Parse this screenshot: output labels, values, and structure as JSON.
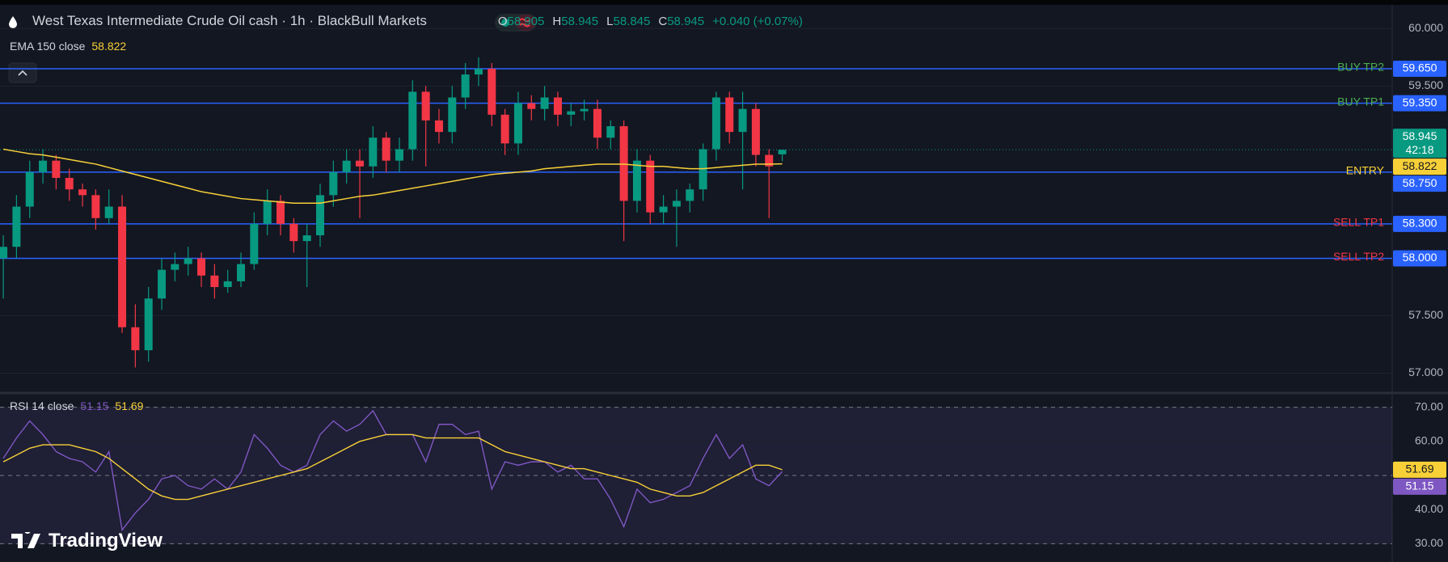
{
  "header": {
    "title": "West Texas Intermediate Crude Oil cash · 1h · BlackBull Markets",
    "ohlc_labels": [
      "O",
      "H",
      "L",
      "C"
    ],
    "change": "+0.040 (+0.07%)"
  },
  "branding": "TradingView",
  "chart_data": [
    {
      "type": "candlestick",
      "up_color": "#089981",
      "down_color": "#f23645",
      "grid": true,
      "xlim": [
        -0.25,
        105.2
      ],
      "ylim": [
        56.87,
        60.185
      ],
      "yticks": [
        {
          "value": 57,
          "label": "57.000"
        },
        {
          "value": 57.5,
          "label": "57.500"
        },
        {
          "value": 59.5,
          "label": "59.500"
        },
        {
          "value": 60,
          "label": "60.000"
        }
      ],
      "open": [
        58.0,
        58.1,
        58.45,
        58.75,
        58.85,
        58.7,
        58.6,
        58.55,
        58.35,
        58.45,
        57.4,
        57.2,
        57.65,
        57.9,
        57.95,
        58.0,
        57.85,
        57.75,
        57.8,
        57.95,
        58.3,
        58.5,
        58.3,
        58.15,
        58.2,
        58.55,
        58.75,
        58.85,
        58.8,
        59.05,
        58.85,
        58.95,
        59.45,
        59.2,
        59.1,
        59.4,
        59.6,
        59.65,
        59.25,
        59.0,
        59.35,
        59.3,
        59.4,
        59.25,
        59.28,
        59.3,
        59.05,
        59.15,
        58.5,
        58.85,
        58.4,
        58.45,
        58.5,
        58.6,
        58.95,
        59.4,
        59.1,
        59.3,
        58.9,
        58.905
      ],
      "high": [
        58.2,
        58.55,
        58.85,
        58.95,
        58.9,
        58.78,
        58.65,
        58.6,
        58.6,
        58.55,
        57.6,
        57.75,
        58.0,
        58.05,
        58.1,
        58.05,
        57.95,
        57.9,
        58.05,
        58.4,
        58.6,
        58.55,
        58.35,
        58.3,
        58.65,
        58.85,
        58.95,
        58.95,
        59.15,
        59.1,
        59.05,
        59.55,
        59.5,
        59.3,
        59.5,
        59.7,
        59.75,
        59.7,
        59.3,
        59.45,
        59.42,
        59.5,
        59.45,
        59.35,
        59.38,
        59.38,
        59.2,
        59.2,
        58.95,
        58.9,
        58.55,
        58.6,
        58.65,
        59.0,
        59.45,
        59.45,
        59.45,
        59.35,
        58.95,
        58.945
      ],
      "low": [
        57.65,
        58.0,
        58.35,
        58.65,
        58.6,
        58.5,
        58.45,
        58.25,
        58.3,
        57.35,
        57.05,
        57.1,
        57.55,
        57.8,
        57.85,
        57.75,
        57.65,
        57.7,
        57.75,
        57.9,
        58.2,
        58.2,
        58.05,
        57.75,
        58.1,
        58.45,
        58.65,
        58.35,
        58.7,
        58.75,
        58.75,
        58.85,
        58.8,
        59.0,
        59.0,
        59.3,
        59.5,
        59.15,
        58.9,
        58.9,
        59.2,
        59.2,
        59.15,
        59.15,
        59.2,
        58.95,
        58.95,
        58.15,
        58.4,
        58.3,
        58.3,
        58.1,
        58.4,
        58.5,
        58.85,
        59.0,
        58.6,
        58.8,
        58.35,
        58.845
      ],
      "close": [
        58.1,
        58.45,
        58.75,
        58.85,
        58.7,
        58.6,
        58.55,
        58.35,
        58.45,
        57.4,
        57.2,
        57.65,
        57.9,
        57.95,
        58.0,
        57.85,
        57.75,
        57.8,
        57.95,
        58.3,
        58.5,
        58.3,
        58.15,
        58.2,
        58.55,
        58.75,
        58.85,
        58.8,
        59.05,
        58.85,
        58.95,
        59.45,
        59.2,
        59.1,
        59.4,
        59.6,
        59.65,
        59.25,
        59.0,
        59.35,
        59.3,
        59.4,
        59.25,
        59.28,
        59.3,
        59.05,
        59.15,
        58.5,
        58.85,
        58.4,
        58.45,
        58.5,
        58.6,
        58.95,
        59.4,
        59.1,
        59.3,
        58.9,
        58.8,
        58.945
      ],
      "ema": {
        "name": "EMA 150 close",
        "color": "#f7d038",
        "values": [
          58.95,
          58.93,
          58.91,
          58.9,
          58.88,
          58.86,
          58.84,
          58.82,
          58.79,
          58.76,
          58.73,
          58.7,
          58.67,
          58.64,
          58.61,
          58.58,
          58.56,
          58.54,
          58.52,
          58.51,
          58.5,
          58.49,
          58.48,
          58.48,
          58.48,
          58.5,
          58.52,
          58.54,
          58.55,
          58.57,
          58.59,
          58.61,
          58.63,
          58.65,
          58.67,
          58.69,
          58.71,
          58.73,
          58.74,
          58.75,
          58.76,
          58.78,
          58.79,
          58.8,
          58.81,
          58.82,
          58.82,
          58.82,
          58.81,
          58.8,
          58.8,
          58.79,
          58.78,
          58.78,
          58.79,
          58.8,
          58.81,
          58.82,
          58.82,
          58.822
        ]
      },
      "countdown": "42:18",
      "levels": [
        {
          "name": "BUY TP2",
          "value": 59.65,
          "label": "59.650",
          "color": "#4caf50"
        },
        {
          "name": "BUY TP1",
          "value": 59.35,
          "label": "59.350",
          "color": "#4caf50"
        },
        {
          "name": "ENTRY",
          "value": 58.75,
          "label": "58.750",
          "color": "#f7d038"
        },
        {
          "name": "SELL TP1",
          "value": 58.3,
          "label": "58.300",
          "color": "#f23645"
        },
        {
          "name": "SELL TP2",
          "value": 58.0,
          "label": "58.000",
          "color": "#f23645"
        }
      ],
      "level_color": "#2962ff"
    },
    {
      "type": "line",
      "title": "RSI 14 close",
      "xlim": [
        -0.25,
        105.2
      ],
      "ylim": [
        27,
        73
      ],
      "grid": true,
      "yticks": [
        {
          "value": 30,
          "label": "30.00"
        },
        {
          "value": 40,
          "label": "40.00"
        },
        {
          "value": 60,
          "label": "60.00"
        },
        {
          "value": 70,
          "label": "70.00"
        }
      ],
      "levels": [
        70,
        50,
        30
      ],
      "series": [
        {
          "color": "#7e57c2",
          "values": [
            55,
            61,
            66,
            62,
            57,
            55,
            54,
            51,
            57,
            34,
            39,
            43,
            49,
            50,
            47,
            46,
            49,
            46,
            51,
            62,
            58,
            53,
            51,
            53,
            62,
            66,
            63,
            65,
            69,
            62,
            62,
            62,
            54,
            65,
            65,
            62,
            63,
            46,
            54,
            53,
            54,
            54,
            51,
            53,
            49,
            49,
            43,
            35,
            46,
            42,
            43,
            45,
            47,
            55,
            62,
            55,
            59,
            49,
            47,
            51.15
          ]
        },
        {
          "color": "#f7d038",
          "values": [
            54,
            56,
            58,
            59,
            59,
            59,
            58,
            57,
            55,
            52,
            49,
            46,
            44,
            43,
            43,
            44,
            45,
            46,
            47,
            48,
            49,
            50,
            51,
            52,
            54,
            56,
            58,
            60,
            61,
            62,
            62,
            62,
            61,
            61,
            61,
            61,
            61,
            59,
            57,
            56,
            55,
            54,
            53,
            52,
            52,
            51,
            50,
            49,
            48,
            46,
            45,
            44,
            44,
            45,
            47,
            49,
            51,
            53,
            53,
            51.69
          ]
        }
      ]
    }
  ]
}
